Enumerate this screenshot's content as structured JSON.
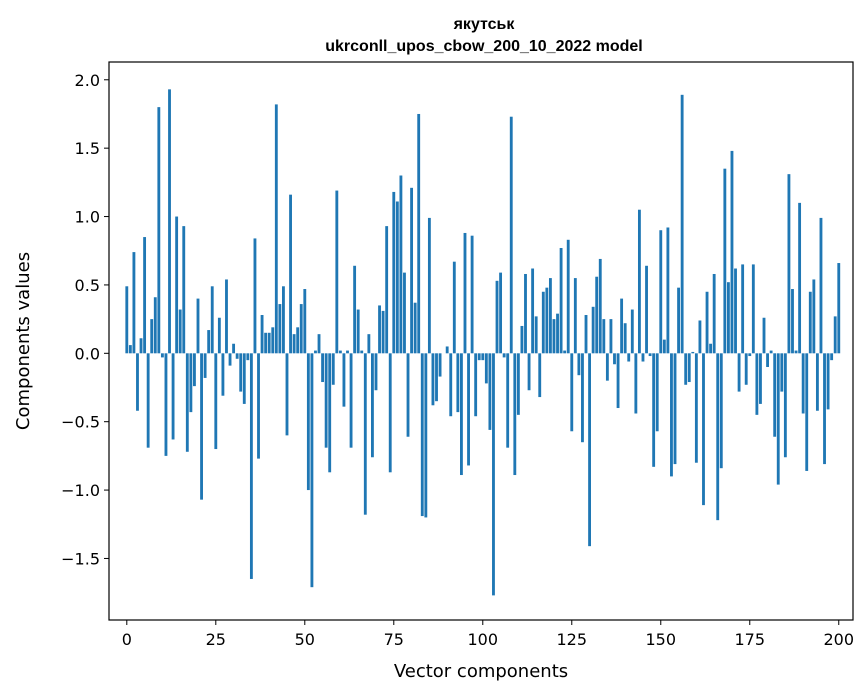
{
  "chart_data": {
    "type": "bar",
    "title": "якутськ",
    "subtitle": "ukrconll_upos_cbow_200_10_2022 model",
    "xlabel": "Vector components",
    "ylabel": "Components values",
    "xlim": [
      -5,
      204
    ],
    "ylim": [
      -1.95,
      2.13
    ],
    "xticks": [
      0,
      25,
      50,
      75,
      100,
      125,
      150,
      175,
      200
    ],
    "yticks": [
      -1.5,
      -1.0,
      -0.5,
      0.0,
      0.5,
      1.0,
      1.5,
      2.0
    ],
    "ytick_labels": [
      "−1.5",
      "−1.0",
      "−0.5",
      "0.0",
      "0.5",
      "1.0",
      "1.5",
      "2.0"
    ],
    "bar_color": "#1f77b4",
    "values": [
      0.49,
      0.06,
      0.74,
      -0.42,
      0.11,
      0.85,
      -0.69,
      0.25,
      0.41,
      1.8,
      -0.03,
      -0.75,
      1.93,
      -0.63,
      1.0,
      0.32,
      0.93,
      -0.72,
      -0.43,
      -0.24,
      0.4,
      -1.07,
      -0.18,
      0.17,
      0.49,
      -0.7,
      0.26,
      -0.31,
      0.54,
      -0.09,
      0.07,
      -0.04,
      -0.28,
      -0.37,
      -0.05,
      -1.65,
      0.84,
      -0.77,
      0.28,
      0.15,
      0.15,
      0.19,
      1.82,
      0.36,
      0.49,
      -0.6,
      1.16,
      0.14,
      0.19,
      0.36,
      0.47,
      -1.0,
      -1.71,
      0.02,
      0.14,
      -0.21,
      -0.69,
      -0.87,
      -0.23,
      1.19,
      0.02,
      -0.39,
      0.02,
      -0.69,
      0.64,
      0.32,
      0.02,
      -1.18,
      0.14,
      -0.76,
      -0.27,
      0.35,
      0.31,
      0.93,
      -0.87,
      1.18,
      1.11,
      1.3,
      0.59,
      -0.61,
      1.21,
      0.37,
      1.75,
      -1.19,
      -1.2,
      0.99,
      -0.38,
      -0.35,
      -0.17,
      0.0,
      0.05,
      -0.46,
      0.67,
      -0.43,
      -0.89,
      0.88,
      -0.82,
      0.86,
      -0.46,
      -0.05,
      -0.05,
      -0.22,
      -0.56,
      -1.77,
      0.53,
      0.59,
      -0.03,
      -0.69,
      1.73,
      -0.89,
      -0.45,
      0.2,
      0.58,
      -0.27,
      0.62,
      0.27,
      -0.32,
      0.45,
      0.48,
      0.55,
      0.25,
      0.29,
      0.77,
      0.02,
      0.83,
      -0.57,
      0.55,
      -0.16,
      -0.65,
      0.28,
      -1.41,
      0.34,
      0.56,
      0.69,
      0.25,
      -0.2,
      0.25,
      -0.08,
      -0.4,
      0.4,
      0.22,
      -0.06,
      0.32,
      -0.44,
      1.05,
      -0.06,
      0.64,
      -0.02,
      -0.83,
      -0.57,
      0.9,
      0.1,
      0.92,
      -0.9,
      -0.81,
      0.48,
      1.89,
      -0.23,
      -0.21,
      0.01,
      -0.8,
      0.24,
      -1.11,
      0.45,
      0.07,
      0.58,
      -1.22,
      -0.84,
      1.35,
      0.52,
      1.48,
      0.62,
      -0.28,
      0.65,
      -0.23,
      -0.02,
      0.65,
      -0.45,
      -0.37,
      0.26,
      -0.1,
      0.02,
      -0.61,
      -0.96,
      -0.28,
      -0.76,
      1.31,
      0.47,
      0.02,
      1.1,
      -0.44,
      -0.86,
      0.45,
      0.54,
      -0.42,
      0.99,
      -0.81,
      -0.41,
      -0.05,
      0.27,
      0.66
    ]
  }
}
